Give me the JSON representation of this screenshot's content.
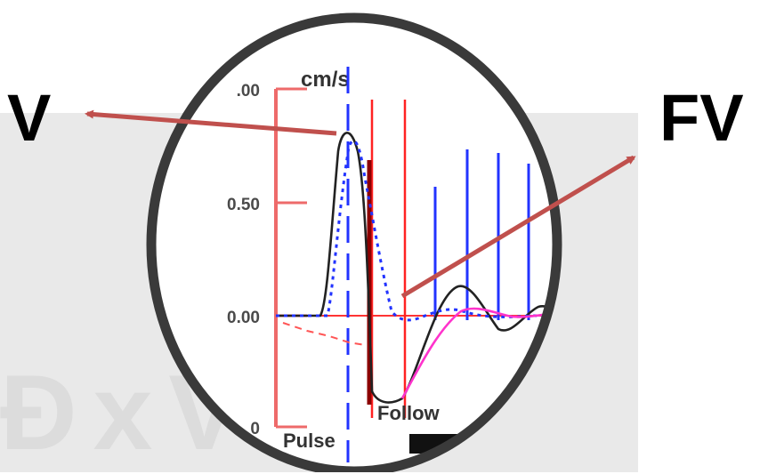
{
  "labels": {
    "left": "V",
    "right": "FV"
  },
  "plot": {
    "unit": "cm/s",
    "ticks": [
      ".00",
      "0.50",
      "0.00"
    ],
    "partial_tick": "0",
    "annotations": {
      "follow": "Follow",
      "pulse": "Pulse"
    }
  },
  "colors": {
    "arrow": "#c0504d",
    "axis": "#ee6a6a",
    "black_trace": "#222222",
    "blue": "#2233ff",
    "red": "#ff2222",
    "magenta": "#ff33cc",
    "lens_ring": "#3a3a3a",
    "gray_panel": "#e9e9e9"
  }
}
